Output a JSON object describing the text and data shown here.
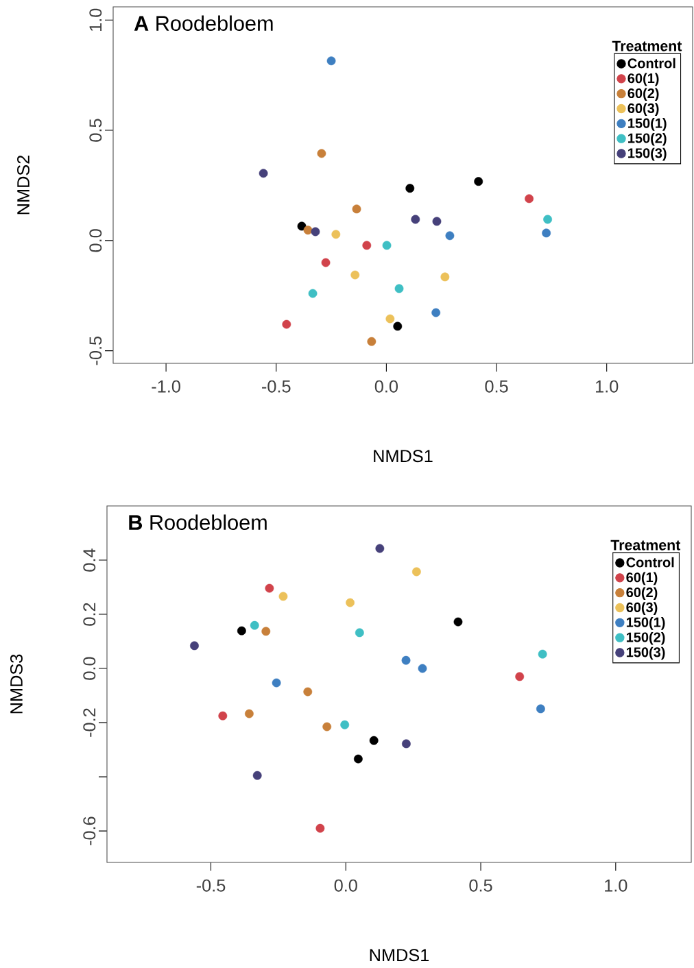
{
  "chart_data": [
    {
      "type": "scatter",
      "title": "**A**  Roodebloem",
      "xlabel": "NMDS1",
      "ylabel": "NMDS2",
      "legend_title": "Treatment",
      "legend": "top right",
      "marker": "circle",
      "grid": false,
      "xlim": [
        -1.24,
        1.39
      ],
      "ylim": [
        -0.557,
        1.06
      ],
      "xticks": [
        {
          "value": -1,
          "label": "-1.0"
        },
        {
          "value": -0.5,
          "label": "-0.5"
        },
        {
          "value": 0,
          "label": "0.0"
        },
        {
          "value": 0.5,
          "label": "0.5"
        },
        {
          "value": 1,
          "label": "1.0"
        }
      ],
      "yticks": [
        {
          "value": -0.5,
          "label": "-0.5"
        },
        {
          "value": 0,
          "label": "0.0"
        },
        {
          "value": 0.5,
          "label": "0.5"
        },
        {
          "value": 1,
          "label": "1.0"
        }
      ],
      "series": [
        {
          "name": "Control",
          "color": "#000000",
          "x": [
            -0.384,
            0.107,
            0.418,
            0.051
          ],
          "values": [
            0.065,
            0.237,
            0.268,
            -0.389
          ]
        },
        {
          "name": "60(1)",
          "color": "#d1434b",
          "x": [
            0.648,
            -0.089,
            -0.275,
            -0.453
          ],
          "values": [
            0.19,
            -0.022,
            -0.1,
            -0.38
          ]
        },
        {
          "name": "60(2)",
          "color": "#c8803a",
          "x": [
            -0.294,
            -0.135,
            -0.356,
            -0.067
          ],
          "values": [
            0.395,
            0.143,
            0.047,
            -0.458
          ]
        },
        {
          "name": "60(3)",
          "color": "#ecc15a",
          "x": [
            -0.229,
            -0.142,
            0.266,
            0.017
          ],
          "values": [
            0.028,
            -0.156,
            -0.165,
            -0.355
          ]
        },
        {
          "name": "150(1)",
          "color": "#3e7fc1",
          "x": [
            -0.25,
            0.288,
            0.726,
            0.225
          ],
          "values": [
            0.815,
            0.022,
            0.034,
            -0.327
          ]
        },
        {
          "name": "150(2)",
          "color": "#3fbfc4",
          "x": [
            0.732,
            0.002,
            0.058,
            -0.334
          ],
          "values": [
            0.096,
            -0.022,
            -0.218,
            -0.24
          ]
        },
        {
          "name": "150(3)",
          "color": "#46417a",
          "x": [
            -0.558,
            -0.322,
            0.132,
            0.229
          ],
          "values": [
            0.305,
            0.04,
            0.096,
            0.087
          ]
        }
      ]
    },
    {
      "type": "scatter",
      "title": "**B**  Roodebloem",
      "xlabel": "NMDS1",
      "ylabel": "NMDS3",
      "legend_title": "Treatment",
      "legend": "top right",
      "marker": "circle",
      "grid": false,
      "xlim": [
        -0.885,
        1.28
      ],
      "ylim": [
        -0.716,
        0.6
      ],
      "xticks": [
        {
          "value": -0.5,
          "label": "-0.5"
        },
        {
          "value": 0,
          "label": "0.0"
        },
        {
          "value": 0.5,
          "label": "0.5"
        },
        {
          "value": 1,
          "label": "1.0"
        }
      ],
      "yticks": [
        {
          "value": -0.6,
          "label": "-0.6"
        },
        {
          "value": -0.4,
          "label": null
        },
        {
          "value": -0.2,
          "label": "-0.2"
        },
        {
          "value": 0,
          "label": "0.0"
        },
        {
          "value": 0.2,
          "label": "0.2"
        },
        {
          "value": 0.4,
          "label": "0.4"
        }
      ],
      "series": [
        {
          "name": "Control",
          "color": "#000000",
          "x": [
            -0.386,
            0.416,
            0.104,
            0.046
          ],
          "values": [
            0.139,
            0.172,
            -0.266,
            -0.334
          ]
        },
        {
          "name": "60(1)",
          "color": "#d1434b",
          "x": [
            -0.283,
            0.644,
            -0.456,
            -0.095
          ],
          "values": [
            0.296,
            -0.03,
            -0.175,
            -0.59
          ]
        },
        {
          "name": "60(2)",
          "color": "#c8803a",
          "x": [
            -0.296,
            -0.141,
            -0.358,
            -0.07
          ],
          "values": [
            0.137,
            -0.086,
            -0.167,
            -0.215
          ]
        },
        {
          "name": "60(3)",
          "color": "#ecc15a",
          "x": [
            -0.232,
            0.262,
            0.016
          ],
          "values": [
            0.266,
            0.357,
            0.243
          ]
        },
        {
          "name": "150(1)",
          "color": "#3e7fc1",
          "x": [
            -0.257,
            0.223,
            0.284,
            0.722
          ],
          "values": [
            -0.053,
            0.03,
            0.0,
            -0.149
          ]
        },
        {
          "name": "150(2)",
          "color": "#3fbfc4",
          "x": [
            -0.338,
            0.051,
            0.729,
            -0.004
          ],
          "values": [
            0.159,
            0.132,
            0.053,
            -0.208
          ]
        },
        {
          "name": "150(3)",
          "color": "#46417a",
          "x": [
            0.126,
            -0.561,
            0.224,
            -0.328
          ],
          "values": [
            0.443,
            0.084,
            -0.278,
            -0.395
          ]
        }
      ]
    }
  ]
}
